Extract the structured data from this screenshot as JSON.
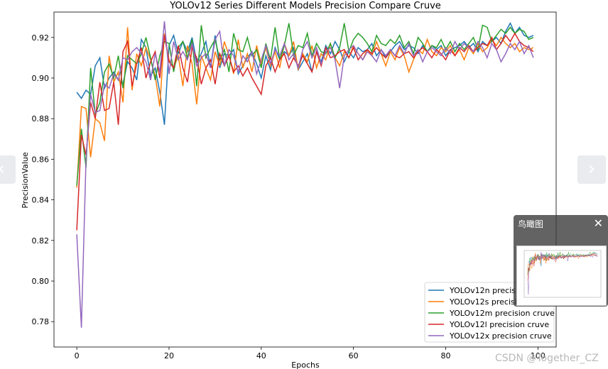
{
  "chart_data": {
    "type": "line",
    "title": "YOLOv12 Series Different Models Precision Compare Cruve",
    "xlabel": "Epochs",
    "ylabel": "PrecisionValue",
    "xlim": [
      -4.95,
      103.95
    ],
    "ylim": [
      0.7675,
      0.9325
    ],
    "xticks": [
      0,
      20,
      40,
      60,
      80,
      100
    ],
    "yticks": [
      0.78,
      0.8,
      0.82,
      0.84,
      0.86,
      0.88,
      0.9,
      0.92
    ],
    "ytick_labels": [
      "0.78",
      "0.80",
      "0.82",
      "0.84",
      "0.86",
      "0.88",
      "0.90",
      "0.92"
    ],
    "grid": false,
    "legend_position": "lower-right",
    "series": [
      {
        "name": "YOLOv12n precision cruve",
        "color": "#1f77b4",
        "values": [
          0.893,
          0.89,
          0.894,
          0.892,
          0.906,
          0.91,
          0.895,
          0.9,
          0.903,
          0.899,
          0.897,
          0.908,
          0.905,
          0.899,
          0.919,
          0.915,
          0.901,
          0.905,
          0.893,
          0.877,
          0.916,
          0.921,
          0.912,
          0.918,
          0.913,
          0.92,
          0.908,
          0.912,
          0.918,
          0.905,
          0.921,
          0.905,
          0.912,
          0.911,
          0.914,
          0.902,
          0.906,
          0.91,
          0.913,
          0.907,
          0.9,
          0.911,
          0.904,
          0.915,
          0.909,
          0.913,
          0.911,
          0.915,
          0.904,
          0.908,
          0.912,
          0.903,
          0.913,
          0.908,
          0.916,
          0.912,
          0.918,
          0.914,
          0.908,
          0.913,
          0.91,
          0.915,
          0.913,
          0.914,
          0.917,
          0.911,
          0.914,
          0.91,
          0.913,
          0.916,
          0.918,
          0.914,
          0.916,
          0.915,
          0.912,
          0.916,
          0.913,
          0.916,
          0.914,
          0.916,
          0.911,
          0.914,
          0.915,
          0.916,
          0.918,
          0.915,
          0.917,
          0.913,
          0.918,
          0.916,
          0.918,
          0.92,
          0.917,
          0.923,
          0.927,
          0.922,
          0.925,
          0.921,
          0.92,
          0.921
        ]
      },
      {
        "name": "YOLOv12s precision cruve",
        "color": "#ff7f0e",
        "values": [
          0.846,
          0.886,
          0.885,
          0.861,
          0.88,
          0.878,
          0.869,
          0.911,
          0.898,
          0.903,
          0.888,
          0.925,
          0.894,
          0.912,
          0.906,
          0.915,
          0.909,
          0.901,
          0.886,
          0.922,
          0.909,
          0.905,
          0.911,
          0.896,
          0.916,
          0.907,
          0.887,
          0.911,
          0.905,
          0.899,
          0.913,
          0.906,
          0.918,
          0.911,
          0.902,
          0.919,
          0.905,
          0.912,
          0.903,
          0.916,
          0.907,
          0.915,
          0.906,
          0.913,
          0.905,
          0.917,
          0.911,
          0.918,
          0.904,
          0.912,
          0.908,
          0.916,
          0.905,
          0.912,
          0.909,
          0.917,
          0.91,
          0.906,
          0.913,
          0.91,
          0.916,
          0.912,
          0.909,
          0.914,
          0.911,
          0.918,
          0.912,
          0.906,
          0.913,
          0.909,
          0.915,
          0.911,
          0.903,
          0.909,
          0.914,
          0.912,
          0.919,
          0.913,
          0.911,
          0.915,
          0.913,
          0.916,
          0.911,
          0.914,
          0.909,
          0.915,
          0.912,
          0.917,
          0.913,
          0.915,
          0.919,
          0.916,
          0.92,
          0.917,
          0.915,
          0.917,
          0.913,
          0.915,
          0.914,
          0.915
        ]
      },
      {
        "name": "YOLOv12m precision cruve",
        "color": "#2ca02c",
        "values": [
          0.847,
          0.875,
          0.856,
          0.905,
          0.882,
          0.888,
          0.903,
          0.907,
          0.9,
          0.911,
          0.895,
          0.911,
          0.909,
          0.907,
          0.912,
          0.92,
          0.91,
          0.899,
          0.911,
          0.918,
          0.917,
          0.903,
          0.915,
          0.918,
          0.91,
          0.919,
          0.896,
          0.926,
          0.91,
          0.915,
          0.919,
          0.909,
          0.914,
          0.903,
          0.922,
          0.914,
          0.913,
          0.92,
          0.911,
          0.914,
          0.905,
          0.917,
          0.909,
          0.925,
          0.909,
          0.916,
          0.927,
          0.911,
          0.916,
          0.915,
          0.922,
          0.911,
          0.917,
          0.913,
          0.912,
          0.917,
          0.91,
          0.915,
          0.927,
          0.913,
          0.919,
          0.922,
          0.92,
          0.917,
          0.913,
          0.921,
          0.917,
          0.916,
          0.919,
          0.917,
          0.921,
          0.915,
          0.918,
          0.912,
          0.92,
          0.917,
          0.913,
          0.916,
          0.915,
          0.919,
          0.914,
          0.918,
          0.913,
          0.917,
          0.914,
          0.917,
          0.92,
          0.914,
          0.926,
          0.925,
          0.918,
          0.921,
          0.924,
          0.922,
          0.925,
          0.922,
          0.924,
          0.923,
          0.919,
          0.92
        ]
      },
      {
        "name": "YOLOv12l precision cruve",
        "color": "#d62728",
        "values": [
          0.825,
          0.872,
          0.862,
          0.888,
          0.88,
          0.898,
          0.884,
          0.885,
          0.898,
          0.877,
          0.913,
          0.918,
          0.896,
          0.907,
          0.915,
          0.9,
          0.908,
          0.913,
          0.9,
          0.921,
          0.908,
          0.905,
          0.916,
          0.905,
          0.898,
          0.915,
          0.91,
          0.897,
          0.905,
          0.909,
          0.897,
          0.912,
          0.906,
          0.911,
          0.903,
          0.906,
          0.901,
          0.905,
          0.9,
          0.896,
          0.892,
          0.906,
          0.91,
          0.903,
          0.909,
          0.912,
          0.905,
          0.91,
          0.906,
          0.911,
          0.907,
          0.903,
          0.913,
          0.906,
          0.915,
          0.91,
          0.911,
          0.913,
          0.914,
          0.91,
          0.915,
          0.909,
          0.912,
          0.914,
          0.912,
          0.915,
          0.912,
          0.91,
          0.914,
          0.911,
          0.91,
          0.912,
          0.913,
          0.91,
          0.913,
          0.915,
          0.913,
          0.91,
          0.914,
          0.912,
          0.909,
          0.914,
          0.911,
          0.915,
          0.913,
          0.916,
          0.913,
          0.915,
          0.917,
          0.916,
          0.92,
          0.914,
          0.917,
          0.921,
          0.918,
          0.922,
          0.918,
          0.916,
          0.915,
          0.913
        ]
      },
      {
        "name": "YOLOv12x precision cruve",
        "color": "#9467bd",
        "values": [
          0.823,
          0.777,
          0.86,
          0.892,
          0.883,
          0.884,
          0.897,
          0.895,
          0.902,
          0.899,
          0.91,
          0.909,
          0.913,
          0.915,
          0.912,
          0.908,
          0.899,
          0.912,
          0.903,
          0.928,
          0.902,
          0.918,
          0.909,
          0.913,
          0.909,
          0.917,
          0.906,
          0.91,
          0.912,
          0.905,
          0.919,
          0.923,
          0.906,
          0.914,
          0.911,
          0.903,
          0.911,
          0.908,
          0.913,
          0.902,
          0.909,
          0.916,
          0.907,
          0.914,
          0.911,
          0.917,
          0.909,
          0.912,
          0.905,
          0.914,
          0.918,
          0.91,
          0.915,
          0.907,
          0.913,
          0.915,
          0.909,
          0.895,
          0.911,
          0.914,
          0.916,
          0.912,
          0.909,
          0.913,
          0.911,
          0.908,
          0.914,
          0.911,
          0.914,
          0.911,
          0.916,
          0.912,
          0.917,
          0.911,
          0.914,
          0.908,
          0.913,
          0.915,
          0.913,
          0.911,
          0.915,
          0.912,
          0.918,
          0.914,
          0.917,
          0.915,
          0.913,
          0.918,
          0.915,
          0.91,
          0.917,
          0.914,
          0.908,
          0.912,
          0.917,
          0.914,
          0.918,
          0.912,
          0.916,
          0.91
        ]
      }
    ]
  },
  "minimap": {
    "title": "鸟瞰图",
    "close_glyph": "✕"
  },
  "nav": {
    "prev_glyph": "‹",
    "next_glyph": "›"
  },
  "watermark": "CSDN @Together_CZ"
}
